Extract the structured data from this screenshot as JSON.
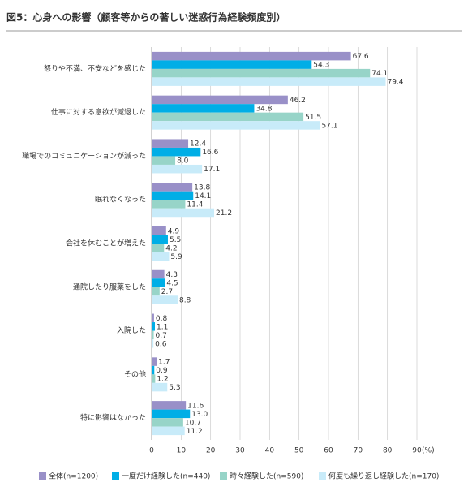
{
  "chart_data": {
    "type": "hbar",
    "title": "図5：心身への影響（顧客等からの著しい迷惑行為経験頻度別）",
    "x_label": "(%)",
    "categories": [
      "怒りや不満、不安などを感じた",
      "仕事に対する意欲が減退した",
      "職場でのコミュニケーションが減った",
      "眠れなくなった",
      "会社を休むことが増えた",
      "通院したり服薬をした",
      "入院した",
      "その他",
      "特に影響はなかった"
    ],
    "series": [
      {
        "name": "全体(n=1200)",
        "color": "#9990c8",
        "values": [
          67.6,
          46.2,
          12.4,
          13.8,
          4.9,
          4.3,
          0.8,
          1.7,
          11.6
        ],
        "value_labels": [
          "67.6",
          "46.2",
          "12.4",
          "13.8",
          "4.9",
          "4.3",
          "0.8",
          "1.7",
          "11.6"
        ]
      },
      {
        "name": "一度だけ経験した(n=440)",
        "color": "#00aee6",
        "values": [
          54.3,
          34.8,
          16.6,
          14.1,
          5.5,
          4.5,
          1.1,
          0.9,
          13.0
        ],
        "value_labels": [
          "54.3",
          "34.8",
          "16.6",
          "14.1",
          "5.5",
          "4.5",
          "1.1",
          "0.9",
          "13.0"
        ]
      },
      {
        "name": "時々経験した(n=590)",
        "color": "#97d4c8",
        "values": [
          74.1,
          51.5,
          8.0,
          11.4,
          4.2,
          2.7,
          0.7,
          1.2,
          10.7
        ],
        "value_labels": [
          "74.1",
          "51.5",
          "8.0",
          "11.4",
          "4.2",
          "2.7",
          "0.7",
          "1.2",
          "10.7"
        ]
      },
      {
        "name": "何度も繰り返し経験した(n=170)",
        "color": "#c8ebf9",
        "values": [
          79.4,
          57.1,
          17.1,
          21.2,
          5.9,
          8.8,
          0.6,
          5.3,
          11.2
        ],
        "value_labels": [
          "79.4",
          "57.1",
          "17.1",
          "21.2",
          "5.9",
          "8.8",
          "0.6",
          "5.3",
          "11.2"
        ]
      }
    ],
    "xlim": [
      0,
      90
    ],
    "xticks": [
      0,
      10,
      20,
      30,
      40,
      50,
      60,
      70,
      80,
      90
    ],
    "grid": true
  }
}
